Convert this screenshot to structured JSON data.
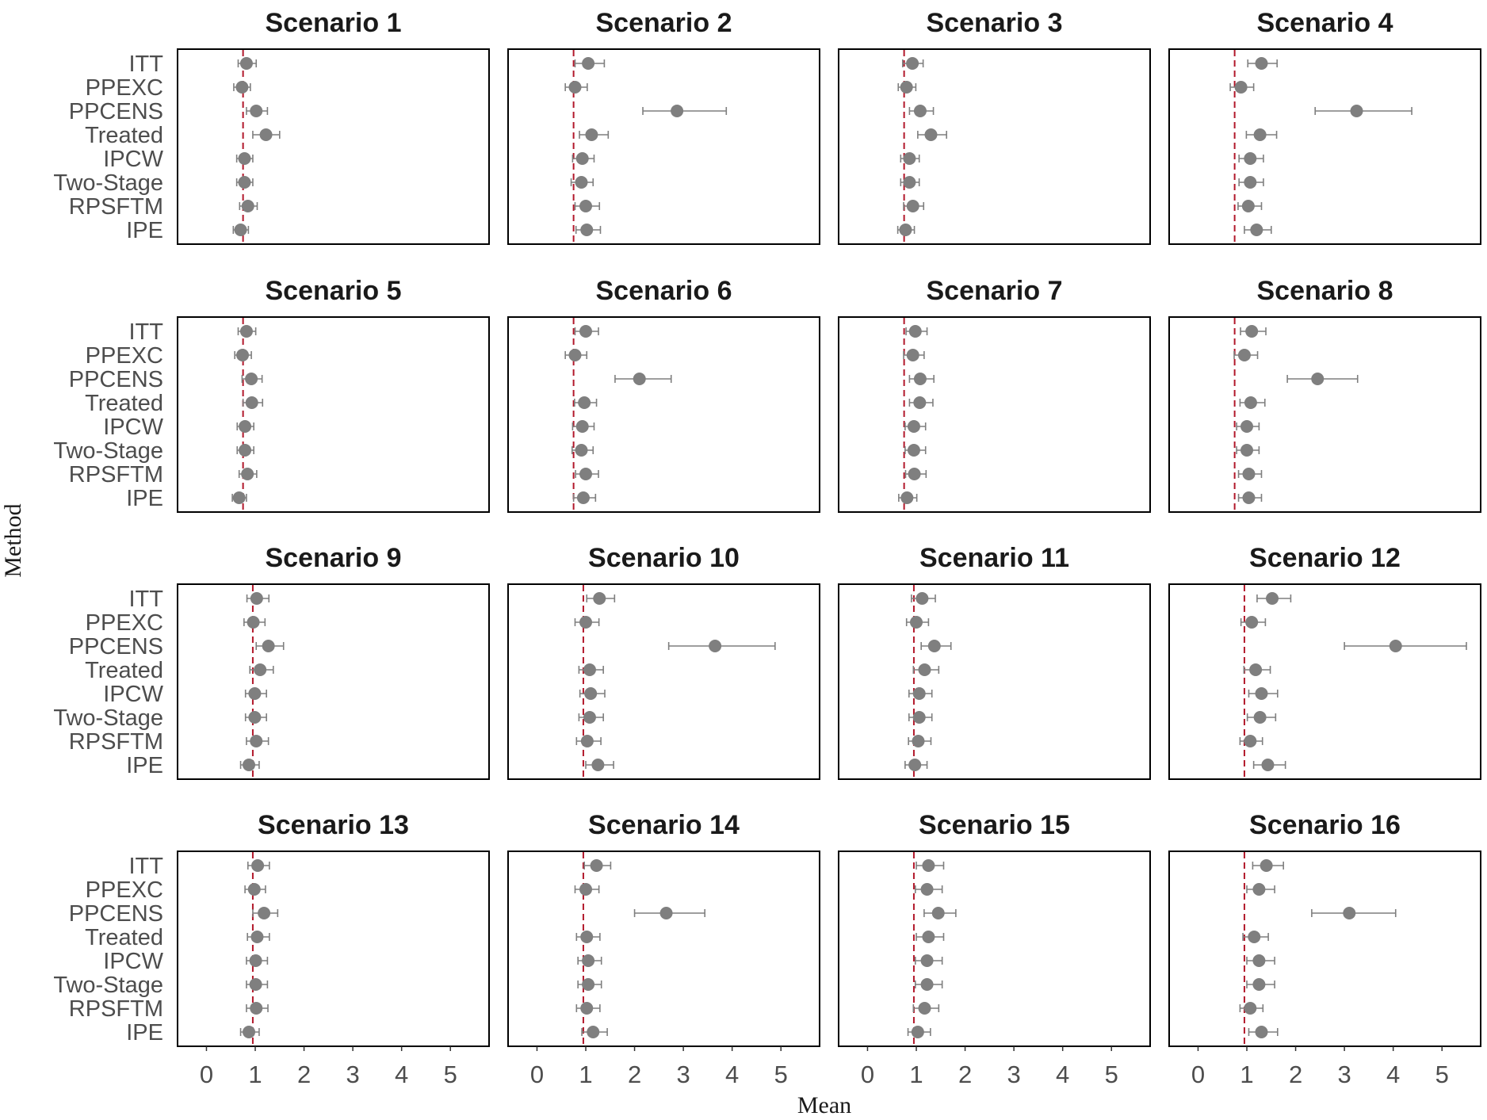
{
  "chart_data": {
    "type": "forest",
    "xlabel": "Mean",
    "ylabel": "Method",
    "xlim": [
      -0.3,
      5.5
    ],
    "xticks": [
      0,
      1,
      2,
      3,
      4,
      5
    ],
    "methods": [
      "ITT",
      "PPEXC",
      "PPCENS",
      "Treated",
      "IPCW",
      "Two-Stage",
      "RPSFTM",
      "IPE"
    ],
    "grid": false,
    "colors": {
      "points": "#7f7f7f",
      "reference_line": "#b2182b"
    },
    "panels": [
      {
        "title": "Scenario 1",
        "reference": 0.75,
        "mean": [
          0.82,
          0.73,
          1.02,
          1.22,
          0.78,
          0.78,
          0.85,
          0.7
        ],
        "lower": [
          0.65,
          0.56,
          0.82,
          0.95,
          0.62,
          0.62,
          0.68,
          0.55
        ],
        "upper": [
          1.02,
          0.9,
          1.25,
          1.5,
          0.95,
          0.95,
          1.04,
          0.86
        ]
      },
      {
        "title": "Scenario 2",
        "reference": 0.75,
        "mean": [
          1.05,
          0.78,
          2.87,
          1.12,
          0.93,
          0.91,
          1.0,
          1.02
        ],
        "lower": [
          0.78,
          0.58,
          2.17,
          0.87,
          0.73,
          0.7,
          0.78,
          0.8
        ],
        "upper": [
          1.38,
          1.03,
          3.88,
          1.46,
          1.17,
          1.15,
          1.28,
          1.3
        ]
      },
      {
        "title": "Scenario 3",
        "reference": 0.75,
        "mean": [
          0.92,
          0.8,
          1.08,
          1.3,
          0.86,
          0.86,
          0.93,
          0.78
        ],
        "lower": [
          0.72,
          0.63,
          0.86,
          1.03,
          0.68,
          0.68,
          0.74,
          0.62
        ],
        "upper": [
          1.14,
          0.99,
          1.35,
          1.62,
          1.06,
          1.06,
          1.15,
          0.96
        ]
      },
      {
        "title": "Scenario 4",
        "reference": 0.75,
        "mean": [
          1.3,
          0.88,
          3.25,
          1.27,
          1.07,
          1.07,
          1.03,
          1.2
        ],
        "lower": [
          1.02,
          0.66,
          2.4,
          0.99,
          0.84,
          0.84,
          0.82,
          0.95
        ],
        "upper": [
          1.62,
          1.14,
          4.38,
          1.61,
          1.34,
          1.34,
          1.3,
          1.5
        ]
      },
      {
        "title": "Scenario 5",
        "reference": 0.75,
        "mean": [
          0.82,
          0.74,
          0.92,
          0.93,
          0.79,
          0.79,
          0.84,
          0.67
        ],
        "lower": [
          0.65,
          0.58,
          0.73,
          0.75,
          0.63,
          0.63,
          0.67,
          0.53
        ],
        "upper": [
          1.01,
          0.92,
          1.14,
          1.15,
          0.97,
          0.97,
          1.03,
          0.82
        ]
      },
      {
        "title": "Scenario 6",
        "reference": 0.75,
        "mean": [
          1.0,
          0.78,
          2.1,
          0.97,
          0.93,
          0.91,
          1.0,
          0.95
        ],
        "lower": [
          0.78,
          0.58,
          1.6,
          0.77,
          0.73,
          0.72,
          0.79,
          0.75
        ],
        "upper": [
          1.26,
          1.02,
          2.75,
          1.22,
          1.17,
          1.15,
          1.26,
          1.2
        ]
      },
      {
        "title": "Scenario 7",
        "reference": 0.75,
        "mean": [
          0.98,
          0.93,
          1.08,
          1.07,
          0.95,
          0.95,
          0.96,
          0.81
        ],
        "lower": [
          0.79,
          0.74,
          0.86,
          0.86,
          0.77,
          0.77,
          0.78,
          0.64
        ],
        "upper": [
          1.22,
          1.16,
          1.36,
          1.34,
          1.19,
          1.19,
          1.2,
          1.01
        ]
      },
      {
        "title": "Scenario 8",
        "reference": 0.75,
        "mean": [
          1.1,
          0.95,
          2.45,
          1.08,
          1.0,
          1.0,
          1.04,
          1.04
        ],
        "lower": [
          0.87,
          0.74,
          1.83,
          0.86,
          0.79,
          0.79,
          0.83,
          0.83
        ],
        "upper": [
          1.39,
          1.22,
          3.27,
          1.37,
          1.25,
          1.25,
          1.3,
          1.3
        ]
      },
      {
        "title": "Scenario 9",
        "reference": 0.95,
        "mean": [
          1.03,
          0.96,
          1.27,
          1.1,
          0.99,
          0.99,
          1.02,
          0.87
        ],
        "lower": [
          0.83,
          0.77,
          1.02,
          0.89,
          0.8,
          0.8,
          0.82,
          0.7
        ],
        "upper": [
          1.28,
          1.2,
          1.58,
          1.37,
          1.23,
          1.23,
          1.27,
          1.08
        ]
      },
      {
        "title": "Scenario 10",
        "reference": 0.95,
        "mean": [
          1.28,
          1.0,
          3.65,
          1.08,
          1.1,
          1.08,
          1.03,
          1.25
        ],
        "lower": [
          1.02,
          0.78,
          2.7,
          0.86,
          0.88,
          0.86,
          0.81,
          1.0
        ],
        "upper": [
          1.59,
          1.27,
          4.88,
          1.36,
          1.39,
          1.36,
          1.31,
          1.57
        ]
      },
      {
        "title": "Scenario 11",
        "reference": 0.95,
        "mean": [
          1.12,
          1.0,
          1.37,
          1.17,
          1.06,
          1.06,
          1.04,
          0.97
        ],
        "lower": [
          0.9,
          0.8,
          1.1,
          0.94,
          0.85,
          0.85,
          0.84,
          0.77
        ],
        "upper": [
          1.39,
          1.25,
          1.71,
          1.46,
          1.32,
          1.32,
          1.3,
          1.22
        ]
      },
      {
        "title": "Scenario 12",
        "reference": 0.95,
        "mean": [
          1.52,
          1.1,
          4.05,
          1.18,
          1.3,
          1.27,
          1.07,
          1.43
        ],
        "lower": [
          1.21,
          0.88,
          3.0,
          0.94,
          1.04,
          1.01,
          0.86,
          1.14
        ],
        "upper": [
          1.9,
          1.38,
          5.5,
          1.48,
          1.63,
          1.59,
          1.32,
          1.79
        ]
      },
      {
        "title": "Scenario 13",
        "reference": 0.95,
        "mean": [
          1.05,
          0.98,
          1.18,
          1.04,
          1.01,
          1.01,
          1.02,
          0.87
        ],
        "lower": [
          0.85,
          0.79,
          0.95,
          0.84,
          0.82,
          0.82,
          0.82,
          0.7
        ],
        "upper": [
          1.29,
          1.21,
          1.46,
          1.29,
          1.25,
          1.25,
          1.26,
          1.08
        ]
      },
      {
        "title": "Scenario 14",
        "reference": 0.95,
        "mean": [
          1.22,
          1.0,
          2.65,
          1.02,
          1.05,
          1.05,
          1.02,
          1.15
        ],
        "lower": [
          0.97,
          0.78,
          2.0,
          0.81,
          0.84,
          0.84,
          0.81,
          0.92
        ],
        "upper": [
          1.51,
          1.27,
          3.44,
          1.29,
          1.32,
          1.32,
          1.29,
          1.44
        ]
      },
      {
        "title": "Scenario 15",
        "reference": 0.95,
        "mean": [
          1.25,
          1.22,
          1.45,
          1.25,
          1.22,
          1.22,
          1.17,
          1.03
        ],
        "lower": [
          1.0,
          0.98,
          1.16,
          1.0,
          0.98,
          0.98,
          0.94,
          0.83
        ],
        "upper": [
          1.56,
          1.53,
          1.81,
          1.56,
          1.53,
          1.53,
          1.46,
          1.29
        ]
      },
      {
        "title": "Scenario 16",
        "reference": 0.95,
        "mean": [
          1.4,
          1.25,
          3.1,
          1.15,
          1.25,
          1.25,
          1.07,
          1.3
        ],
        "lower": [
          1.12,
          1.0,
          2.33,
          0.92,
          1.0,
          1.0,
          0.86,
          1.04
        ],
        "upper": [
          1.75,
          1.57,
          4.05,
          1.44,
          1.57,
          1.57,
          1.33,
          1.63
        ]
      }
    ]
  }
}
